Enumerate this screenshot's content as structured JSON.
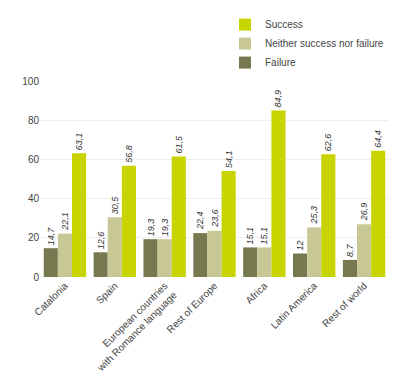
{
  "chart_data": {
    "type": "bar",
    "categories": [
      "Catalonia",
      "Spain",
      "European countries\nwith Romance language",
      "Rest of Europe",
      "Africa",
      "Latin America",
      "Rest of world"
    ],
    "series": [
      {
        "name": "Failure",
        "color": "#787850",
        "values": [
          14.7,
          12.6,
          19.3,
          22.4,
          15.1,
          12.0,
          8.7
        ],
        "value_labels": [
          "14,7",
          "12,6",
          "19,3",
          "22,4",
          "15,1",
          "12",
          "8,7"
        ]
      },
      {
        "name": "Neither success nor failure",
        "color": "#c8c896",
        "values": [
          22.1,
          30.5,
          19.3,
          23.6,
          15.1,
          25.3,
          26.9
        ],
        "value_labels": [
          "22,1",
          "30,5",
          "19,3",
          "23,6",
          "15,1",
          "25,3",
          "26,9"
        ]
      },
      {
        "name": "Success",
        "color": "#c8d400",
        "values": [
          63.1,
          56.8,
          61.5,
          54.1,
          84.9,
          62.6,
          64.4
        ],
        "value_labels": [
          "63,1",
          "56,8",
          "61,5",
          "54,1",
          "84,9",
          "62,6",
          "64,4"
        ]
      }
    ],
    "ylim": [
      0,
      100
    ],
    "yticks": [
      0,
      20,
      40,
      60,
      80,
      100
    ],
    "grid": true,
    "legend": "top",
    "data_labels": true
  }
}
